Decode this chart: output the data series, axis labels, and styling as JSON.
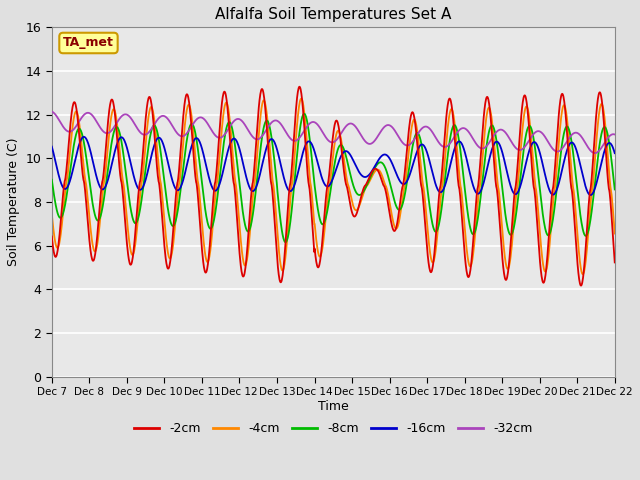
{
  "title": "Alfalfa Soil Temperatures Set A",
  "ylabel": "Soil Temperature (C)",
  "xlabel": "Time",
  "annotation": "TA_met",
  "ylim": [
    0,
    16
  ],
  "yticks": [
    0,
    2,
    4,
    6,
    8,
    10,
    12,
    14,
    16
  ],
  "xtick_labels": [
    "Dec 7",
    "Dec 8",
    "Dec 9",
    "Dec 10",
    "Dec 11",
    "Dec 12",
    "Dec 13",
    "Dec 14",
    "Dec 15",
    "Dec 16",
    "Dec 17",
    "Dec 18",
    "Dec 19",
    "Dec 20",
    "Dec 21",
    "Dec 22"
  ],
  "line_colors": {
    "-2cm": "#dd0000",
    "-4cm": "#ff8800",
    "-8cm": "#00bb00",
    "-16cm": "#0000cc",
    "-32cm": "#aa44bb"
  },
  "bg_color": "#e8e8e8",
  "grid_color": "#ffffff",
  "fig_bg": "#e0e0e0"
}
